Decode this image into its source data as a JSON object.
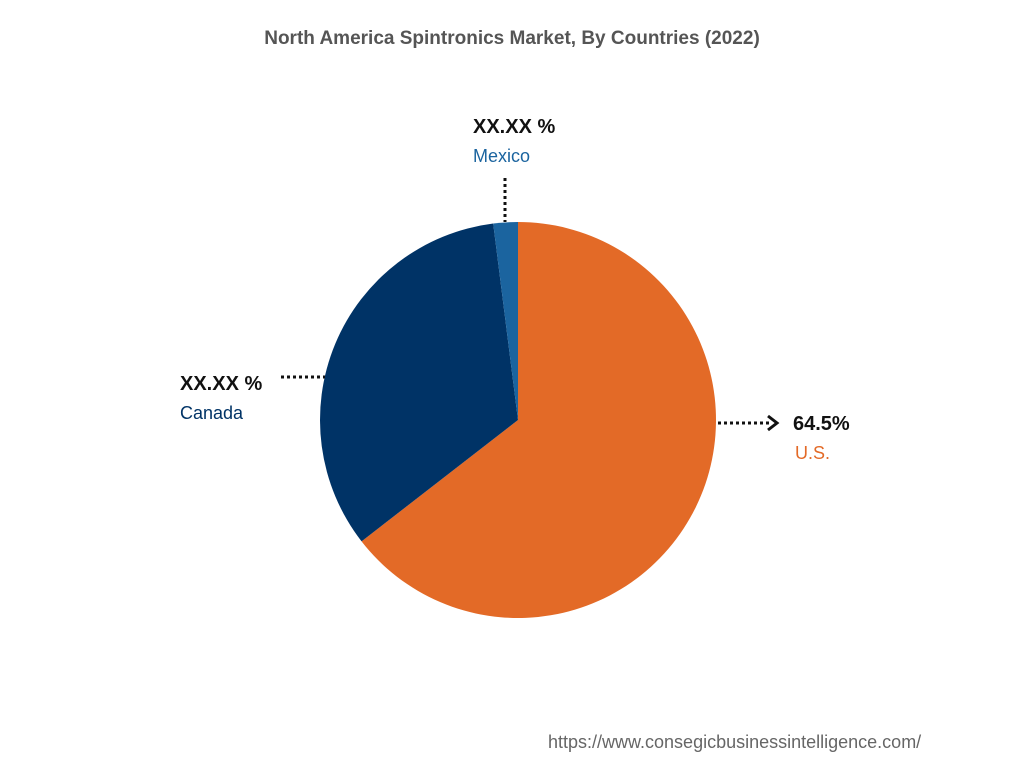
{
  "chart_data": {
    "type": "pie",
    "title": "North America Spintronics Market, By Countries (2022)",
    "slices": [
      {
        "name": "U.S.",
        "value": 64.5,
        "label": "64.5%",
        "color": "#E36A27"
      },
      {
        "name": "Canada",
        "value": 33.5,
        "label": "XX.XX %",
        "color": "#003366"
      },
      {
        "name": "Mexico",
        "value": 2.0,
        "label": "XX.XX %",
        "color": "#1B649F"
      }
    ]
  },
  "footer": {
    "source_url": "https://www.consegicbusinessintelligence.com/"
  }
}
